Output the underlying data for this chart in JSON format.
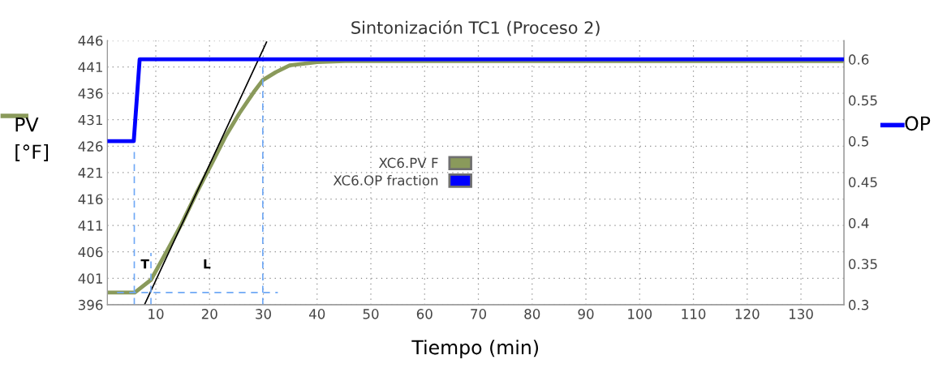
{
  "chart_data": {
    "type": "line",
    "title": "Sintonización TC1 (Proceso 2)",
    "xlabel": "Tiempo (min)",
    "ylabel": "PV [°F]",
    "y2label": "OP",
    "xlim": [
      1,
      138
    ],
    "xticks": [
      10,
      20,
      30,
      40,
      50,
      60,
      70,
      80,
      90,
      100,
      110,
      120,
      130
    ],
    "ylim": [
      396,
      446
    ],
    "yticks": [
      396,
      401,
      406,
      411,
      416,
      421,
      426,
      431,
      436,
      441,
      446
    ],
    "y2lim": [
      0.3,
      0.623
    ],
    "y2ticks": [
      0.3,
      0.35,
      0.4,
      0.45,
      0.5,
      0.55,
      0.6
    ],
    "grid": true,
    "legend": "center",
    "line_style": "solid",
    "marker": "none",
    "series": [
      {
        "name": "XC6.PV F",
        "color": "#8a9a5b",
        "axis": "y",
        "x": [
          1,
          6.1,
          9.1,
          12.2,
          14.8,
          17.6,
          20.4,
          23,
          25.6,
          28.2,
          29.9,
          32.3,
          34.9,
          40,
          45.2,
          60,
          138
        ],
        "values": [
          398.3,
          398.3,
          400.7,
          406.4,
          411.3,
          417.2,
          422.7,
          427.9,
          432.3,
          436.2,
          438.5,
          440,
          441.3,
          441.9,
          442.1,
          442.1,
          442.1
        ]
      },
      {
        "name": "XC6.OP fraction",
        "color": "#0000ff",
        "axis": "y2",
        "x": [
          1,
          5.9,
          7,
          138
        ],
        "values": [
          0.5,
          0.5,
          0.6,
          0.6
        ]
      },
      {
        "type": "line",
        "color": "#000000",
        "axis": "y",
        "x": [
          7.9,
          30.6
        ],
        "values": [
          396,
          445.7
        ]
      },
      {
        "type": "line",
        "color": "#6fa8f5",
        "axis": "y",
        "line_style": "dashed",
        "x": [
          6,
          6
        ],
        "values": [
          396,
          426
        ]
      },
      {
        "type": "line",
        "color": "#6fa8f5",
        "axis": "y",
        "line_style": "dashed",
        "x": [
          9.1,
          9.1
        ],
        "values": [
          396,
          405.8
        ]
      },
      {
        "type": "line",
        "color": "#6fa8f5",
        "axis": "y",
        "line_style": "dashed",
        "x": [
          29.9,
          29.9
        ],
        "values": [
          396,
          442.9
        ]
      },
      {
        "type": "line",
        "color": "#6fa8f5",
        "axis": "y",
        "line_style": "dashed",
        "x": [
          2.8,
          32.7
        ],
        "values": [
          398.3,
          398.3
        ]
      }
    ],
    "annotations": [
      "T",
      "L"
    ]
  }
}
